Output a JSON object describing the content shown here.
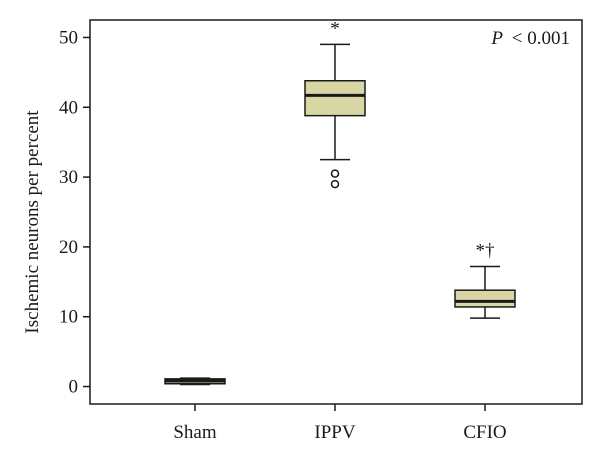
{
  "chart_data": {
    "type": "box",
    "ylabel": "Ischemic neurons per percent",
    "xlabel": "",
    "ylim": [
      -2.5,
      52.5
    ],
    "yticks": [
      0,
      10,
      20,
      30,
      40,
      50
    ],
    "categories": [
      "Sham",
      "IPPV",
      "CFIO"
    ],
    "boxes": [
      {
        "category": "Sham",
        "whisker_low": 0.3,
        "q1": 0.4,
        "median": 0.8,
        "q3": 1.1,
        "whisker_high": 1.2,
        "outliers": [],
        "annotation": ""
      },
      {
        "category": "IPPV",
        "whisker_low": 32.5,
        "q1": 38.8,
        "median": 41.7,
        "q3": 43.8,
        "whisker_high": 49.0,
        "outliers": [
          29.0,
          30.5
        ],
        "annotation": "*"
      },
      {
        "category": "CFIO",
        "whisker_low": 9.8,
        "q1": 11.4,
        "median": 12.2,
        "q3": 13.8,
        "whisker_high": 17.2,
        "outliers": [],
        "annotation": "*†"
      }
    ],
    "p_label": "P",
    "p_value": "< 0.001",
    "box_color": "#d7d6a4",
    "line_color": "#1a1a1a"
  }
}
